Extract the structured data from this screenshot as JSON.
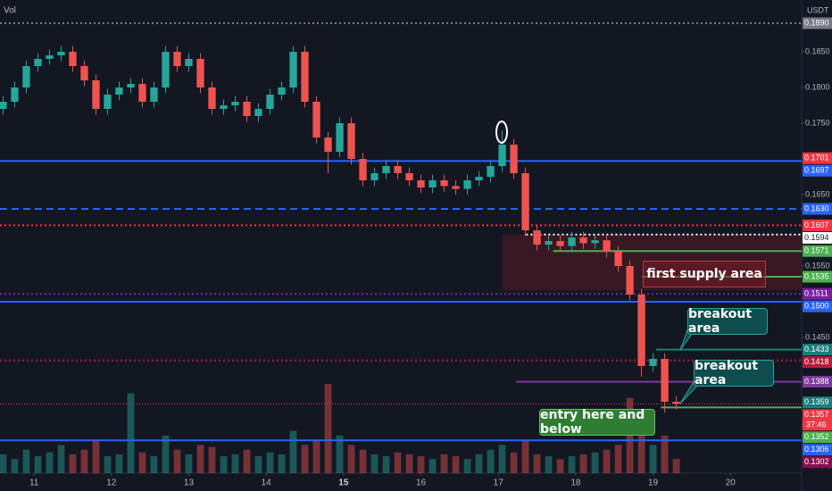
{
  "chart_data": {
    "type": "candlestick",
    "volume_label": "Vol",
    "currency": "USDT",
    "x": [
      10.6,
      10.75,
      10.9,
      11.05,
      11.2,
      11.35,
      11.5,
      11.65,
      11.8,
      11.95,
      12.1,
      12.25,
      12.4,
      12.55,
      12.7,
      12.85,
      13,
      13.15,
      13.3,
      13.45,
      13.6,
      13.75,
      13.9,
      14.05,
      14.2,
      14.35,
      14.5,
      14.65,
      14.8,
      14.95,
      15.1,
      15.25,
      15.4,
      15.55,
      15.7,
      15.85,
      16,
      16.15,
      16.3,
      16.45,
      16.6,
      16.75,
      16.9,
      17.05,
      17.2,
      17.35,
      17.5,
      17.65,
      17.8,
      17.95,
      18.1,
      18.25,
      18.4,
      18.55,
      18.7,
      18.85,
      19,
      19.15,
      19.3
    ],
    "opens": [
      0.177,
      0.178,
      0.18,
      0.183,
      0.184,
      0.1845,
      0.185,
      0.183,
      0.181,
      0.177,
      0.179,
      0.18,
      0.1805,
      0.178,
      0.18,
      0.185,
      0.183,
      0.184,
      0.18,
      0.177,
      0.1775,
      0.178,
      0.176,
      0.177,
      0.179,
      0.18,
      0.185,
      0.178,
      0.173,
      0.171,
      0.175,
      0.17,
      0.167,
      0.168,
      0.169,
      0.168,
      0.167,
      0.166,
      0.167,
      0.1662,
      0.1658,
      0.167,
      0.1675,
      0.169,
      0.172,
      0.168,
      0.16,
      0.158,
      0.1585,
      0.1578,
      0.159,
      0.1582,
      0.1586,
      0.157,
      0.155,
      0.151,
      0.141,
      0.142,
      0.136
    ],
    "highs": [
      0.1788,
      0.1808,
      0.1838,
      0.1848,
      0.1853,
      0.1858,
      0.1858,
      0.1838,
      0.1818,
      0.1798,
      0.1808,
      0.1813,
      0.1813,
      0.1808,
      0.1858,
      0.1858,
      0.1848,
      0.1848,
      0.1808,
      0.1783,
      0.1788,
      0.1788,
      0.1778,
      0.1798,
      0.1808,
      0.1858,
      0.1858,
      0.1788,
      0.1738,
      0.1758,
      0.1758,
      0.1708,
      0.1688,
      0.1698,
      0.1698,
      0.1688,
      0.1678,
      0.1678,
      0.1678,
      0.167,
      0.1678,
      0.1683,
      0.1698,
      0.174,
      0.1728,
      0.1688,
      0.1608,
      0.1593,
      0.1593,
      0.1598,
      0.1598,
      0.1594,
      0.1594,
      0.1578,
      0.1558,
      0.1518,
      0.1428,
      0.1428,
      0.1368
    ],
    "lows": [
      0.1762,
      0.1772,
      0.1792,
      0.1822,
      0.1832,
      0.1837,
      0.1822,
      0.1802,
      0.1762,
      0.1762,
      0.1782,
      0.1792,
      0.1772,
      0.1772,
      0.1792,
      0.1822,
      0.1822,
      0.1792,
      0.1762,
      0.1762,
      0.1767,
      0.1752,
      0.1752,
      0.1762,
      0.1782,
      0.1792,
      0.1772,
      0.1722,
      0.168,
      0.1702,
      0.1692,
      0.1662,
      0.1662,
      0.1672,
      0.1672,
      0.1662,
      0.1652,
      0.1652,
      0.1654,
      0.165,
      0.165,
      0.1662,
      0.1667,
      0.1682,
      0.1672,
      0.1592,
      0.1572,
      0.1572,
      0.157,
      0.157,
      0.1574,
      0.1574,
      0.1562,
      0.1542,
      0.1502,
      0.1395,
      0.1402,
      0.1345,
      0.1349
    ],
    "closes": [
      0.178,
      0.18,
      0.183,
      0.184,
      0.1845,
      0.185,
      0.183,
      0.181,
      0.177,
      0.179,
      0.18,
      0.1805,
      0.178,
      0.18,
      0.185,
      0.183,
      0.184,
      0.18,
      0.177,
      0.1775,
      0.178,
      0.176,
      0.177,
      0.179,
      0.18,
      0.185,
      0.178,
      0.173,
      0.171,
      0.175,
      0.17,
      0.167,
      0.168,
      0.169,
      0.168,
      0.167,
      0.166,
      0.167,
      0.1662,
      0.1658,
      0.167,
      0.1675,
      0.169,
      0.172,
      0.168,
      0.16,
      0.158,
      0.1585,
      0.1578,
      0.159,
      0.1582,
      0.1586,
      0.157,
      0.155,
      0.151,
      0.141,
      0.142,
      0.136,
      0.1357
    ],
    "volume": [
      20,
      15,
      25,
      18,
      22,
      30,
      20,
      25,
      35,
      18,
      20,
      85,
      22,
      18,
      40,
      25,
      20,
      30,
      28,
      18,
      20,
      25,
      18,
      22,
      20,
      45,
      30,
      35,
      95,
      40,
      30,
      25,
      20,
      18,
      22,
      20,
      18,
      15,
      20,
      18,
      15,
      20,
      25,
      30,
      22,
      35,
      20,
      18,
      15,
      18,
      20,
      22,
      25,
      30,
      80,
      60,
      30,
      40,
      15
    ],
    "up_color": "#26a69a",
    "down_color": "#ef5350",
    "xlim": [
      10.56,
      20.92
    ],
    "xticks": [
      11,
      12,
      13,
      14,
      15,
      16,
      17,
      18,
      19,
      20
    ],
    "ylim": [
      0.126,
      0.19225
    ],
    "yticks": [
      {
        "value": 0.185,
        "label": "0.1850"
      },
      {
        "value": 0.18,
        "label": "0.1800"
      },
      {
        "value": 0.175,
        "label": "0.1750"
      },
      {
        "value": 0.165,
        "label": "0.1650"
      },
      {
        "value": 0.155,
        "label": "0.1550"
      },
      {
        "value": 0.145,
        "label": "0.1450"
      }
    ],
    "levels": [
      {
        "value": 0.189,
        "label": "0.1890",
        "color": "#787b86",
        "style": "dotted"
      },
      {
        "value": 0.1701,
        "label": "0.1701",
        "color": "#f23645",
        "style": "none"
      },
      {
        "value": 0.1697,
        "label": "0.1697",
        "color": "#2962ff",
        "style": "solid"
      },
      {
        "value": 0.163,
        "label": "0.1630",
        "color": "#2962ff",
        "style": "dashed"
      },
      {
        "value": 0.1607,
        "label": "0.1607",
        "color": "#f23645",
        "style": "dotted"
      },
      {
        "value": 0.1594,
        "label": "0.1594",
        "color": "#ffffff",
        "style": "dotted",
        "from": 17.36
      },
      {
        "value": 0.1571,
        "label": "0.1571",
        "color": "#4caf50",
        "style": "solid",
        "from": 17.71
      },
      {
        "value": 0.1535,
        "label": "0.1535",
        "color": "#4caf50",
        "style": "solid",
        "from": 18.86
      },
      {
        "value": 0.1511,
        "label": "0.1511",
        "color": "#7b1fa2",
        "style": "dotted"
      },
      {
        "value": 0.15,
        "label": "0.1500",
        "color": "#2962ff",
        "style": "solid"
      },
      {
        "value": 0.1433,
        "label": "0.1433",
        "color": "#1b7f79",
        "style": "solid",
        "from": 19.04
      },
      {
        "value": 0.1418,
        "label": "0.1418",
        "color": "#b71c3a",
        "style": "dotted"
      },
      {
        "value": 0.1388,
        "label": "0.1388",
        "color": "#7e3a9c",
        "style": "solid",
        "from": 17.23
      },
      {
        "value": 0.1359,
        "label": "0.1359",
        "color": "#1b7f79",
        "style": "none"
      },
      {
        "value": 0.1357,
        "label": "0.1357",
        "sublabel": "37:46",
        "color": "#f23645",
        "style": "thin"
      },
      {
        "value": 0.1352,
        "label": "0.1352",
        "color": "#4caf50",
        "style": "solid",
        "from": 19.1
      },
      {
        "value": 0.1306,
        "label": "0.1306",
        "color": "#2962ff",
        "style": "solid"
      },
      {
        "value": 0.1302,
        "label": "0.1302",
        "color": "#880e4f",
        "style": "none"
      }
    ],
    "zone": {
      "top": 0.1594,
      "bottom": 0.1516,
      "from": 17.05
    },
    "annotations": {
      "supply": "first supply area",
      "breakout_1": "breakout area",
      "breakout_2": "breakout area",
      "entry": "entry here and below"
    }
  }
}
